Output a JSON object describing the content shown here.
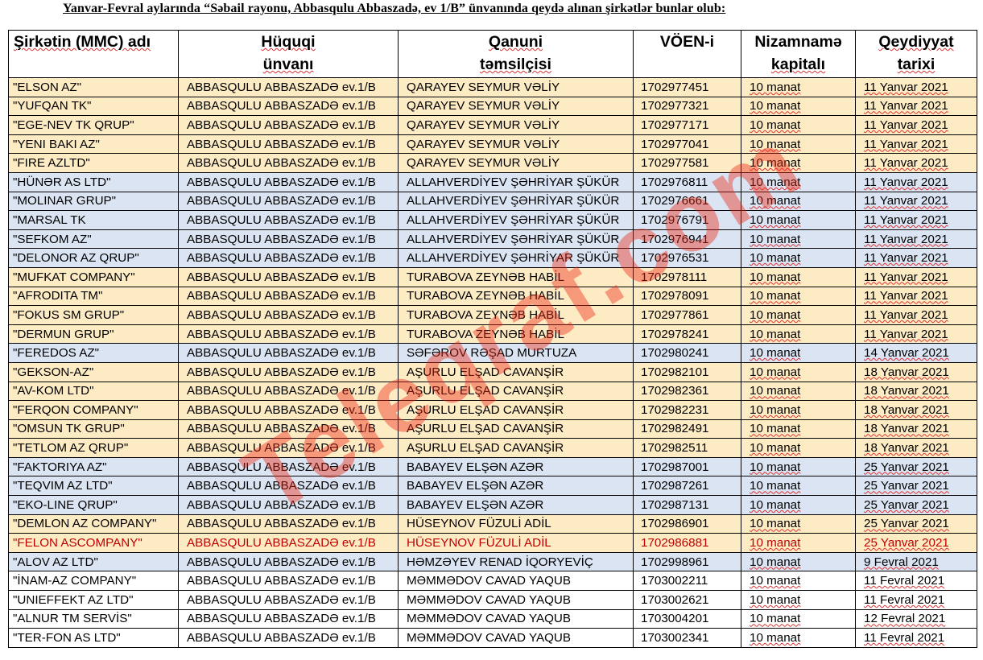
{
  "title": "Yanvar-Fevral aylarında  “Səbail rayonu, Abbasqulu Abbaszadə, ev 1/B” ünvanında qeydə alınan şirkətlər bunlar olub:",
  "watermark": "Teleqraf.com",
  "colors": {
    "orange_band": "#fdebc4",
    "blue_band": "#dbe4f3",
    "highlight_red": "#c00000"
  },
  "columns": [
    {
      "line1": "Şirkətin (MMC) adı",
      "line2": ""
    },
    {
      "line1": "Hüquqi",
      "line2": "ünvanı"
    },
    {
      "line1": "Qanuni",
      "line2": "təmsilçisi"
    },
    {
      "line1": "VÖEN-i",
      "line2": ""
    },
    {
      "line1": "Nizamnamə",
      "line2": "kapitalı"
    },
    {
      "line1": "Qeydiyyat",
      "line2": "tarixi"
    }
  ],
  "rows": [
    {
      "name": "\"ELSON AZ\"",
      "address": "ABBASQULU ABBASZADƏ ev.1/B",
      "rep": "QARAYEV SEYMUR VƏLİY",
      "voen": "1702977451",
      "capital": "10 manat",
      "date": "11 Yanvar 2021"
    },
    {
      "name": "\"YUFQAN TK\"",
      "address": "ABBASQULU ABBASZADƏ ev.1/B",
      "rep": "QARAYEV SEYMUR VƏLİY",
      "voen": "1702977321",
      "capital": "10 manat",
      "date": "11 Yanvar 2021"
    },
    {
      "name": "\"EGE-NEV TK QRUP\"",
      "address": "ABBASQULU ABBASZADƏ ev.1/B",
      "rep": "QARAYEV SEYMUR VƏLİY",
      "voen": "1702977171",
      "capital": "10 manat",
      "date": "11 Yanvar 2021"
    },
    {
      "name": "\"YENI BAKI AZ\"",
      "address": "ABBASQULU ABBASZADƏ ev.1/B",
      "rep": "QARAYEV SEYMUR VƏLİY",
      "voen": "1702977041",
      "capital": "10 manat",
      "date": "11 Yanvar 2021"
    },
    {
      "name": "\"FIRE AZLTD\"",
      "address": "ABBASQULU ABBASZADƏ ev.1/B",
      "rep": "QARAYEV SEYMUR VƏLİY",
      "voen": "1702977581",
      "capital": "10 manat",
      "date": "11 Yanvar 2021"
    },
    {
      "name": "\"HÜNƏR AS LTD\"",
      "address": "ABBASQULU ABBASZADƏ ev.1/B",
      "rep": "ALLAHVERDİYEV ŞƏHRİYAR ŞÜKÜR",
      "voen": "1702976811",
      "capital": "10 manat",
      "date": "11 Yanvar 2021"
    },
    {
      "name": "\"MOLINAR GRUP\"",
      "address": "ABBASQULU ABBASZADƏ ev.1/B",
      "rep": "ALLAHVERDİYEV ŞƏHRİYAR ŞÜKÜR",
      "voen": "1702976661",
      "capital": "10 manat",
      "date": "11 Yanvar 2021"
    },
    {
      "name": "\"MARSAL TK",
      "address": "ABBASQULU ABBASZADƏ ev.1/B",
      "rep": "ALLAHVERDİYEV ŞƏHRİYAR ŞÜKÜR",
      "voen": "1702976791",
      "capital": "10 manat",
      "date": "11 Yanvar 2021"
    },
    {
      "name": "\"SEFKOM AZ\"",
      "address": "ABBASQULU ABBASZADƏ ev.1/B",
      "rep": "ALLAHVERDİYEV ŞƏHRİYAR ŞÜKÜR",
      "voen": "1702976941",
      "capital": "10 manat",
      "date": "11 Yanvar 2021"
    },
    {
      "name": "\"DELONOR AZ QRUP\"",
      "address": "ABBASQULU ABBASZADƏ ev.1/B",
      "rep": "ALLAHVERDİYEV ŞƏHRİYAR ŞÜKÜR",
      "voen": "1702976531",
      "capital": "10 manat",
      "date": "11 Yanvar 2021"
    },
    {
      "name": "\"MUFKAT COMPANY\"",
      "address": "ABBASQULU ABBASZADƏ ev.1/B",
      "rep": "TURABOVA ZEYNƏB HABİL",
      "voen": "1702978111",
      "capital": "10 manat",
      "date": "11 Yanvar 2021"
    },
    {
      "name": "\"AFRODITA TM\"",
      "address": "ABBASQULU ABBASZADƏ ev.1/B",
      "rep": "TURABOVA ZEYNƏB HABİL",
      "voen": "1702978091",
      "capital": "10 manat",
      "date": "11 Yanvar 2021"
    },
    {
      "name": "\"FOKUS SM GRUP\"",
      "address": "ABBASQULU ABBASZADƏ ev.1/B",
      "rep": "TURABOVA ZEYNƏB HABİL",
      "voen": "1702977861",
      "capital": "10 manat",
      "date": "11 Yanvar 2021"
    },
    {
      "name": "\"DERMUN GRUP\"",
      "address": "ABBASQULU ABBASZADƏ ev.1/B",
      "rep": "TURABOVA ZEYNƏB HABİL",
      "voen": "1702978241",
      "capital": "10 manat",
      "date": "11 Yanvar 2021"
    },
    {
      "name": "\"FEREDOS AZ\"",
      "address": "ABBASQULU ABBASZADƏ ev.1/B",
      "rep": "SƏFƏROV RƏŞAD MURTUZA",
      "voen": "1702980241",
      "capital": "10 manat",
      "date": "14 Yanvar 2021"
    },
    {
      "name": "\"GEKSON-AZ\"",
      "address": "ABBASQULU ABBASZADƏ ev.1/B",
      "rep": "AŞURLU ELŞAD CAVANŞİR",
      "voen": "1702982101",
      "capital": "10 manat",
      "date": "18 Yanvar 2021"
    },
    {
      "name": "\"AV-KOM LTD\"",
      "address": "ABBASQULU ABBASZADƏ ev.1/B",
      "rep": "AŞURLU ELŞAD CAVANŞİR",
      "voen": "1702982361",
      "capital": "10 manat",
      "date": "18 Yanvar 2021"
    },
    {
      "name": "\"FERQON COMPANY\"",
      "address": "ABBASQULU ABBASZADƏ ev.1/B",
      "rep": "AŞURLU ELŞAD CAVANŞİR",
      "voen": "1702982231",
      "capital": "10 manat",
      "date": "18 Yanvar 2021"
    },
    {
      "name": "\"OMSUN TK GRUP\"",
      "address": "ABBASQULU ABBASZADƏ ev.1/B",
      "rep": "AŞURLU ELŞAD CAVANŞİR",
      "voen": "1702982491",
      "capital": "10 manat",
      "date": "18 Yanvar 2021"
    },
    {
      "name": "\"TETLOM AZ QRUP\"",
      "address": "ABBASQULU ABBASZADƏ ev.1/B",
      "rep": "AŞURLU ELŞAD CAVANŞİR",
      "voen": "1702982511",
      "capital": "10 manat",
      "date": "18 Yanvar 2021"
    },
    {
      "name": "\"FAKTORIYA AZ\"",
      "address": "ABBASQULU ABBASZADƏ ev.1/B",
      "rep": "BABAYEV ELŞƏN AZƏR",
      "voen": "1702987001",
      "capital": "10 manat",
      "date": "25 Yanvar 2021"
    },
    {
      "name": "\"TEQVIM AZ LTD\"",
      "address": "ABBASQULU ABBASZADƏ ev.1/B",
      "rep": "BABAYEV ELŞƏN AZƏR",
      "voen": "1702987261",
      "capital": "10 manat",
      "date": "25 Yanvar 2021"
    },
    {
      "name": "\"EKO-LINE QRUP\"",
      "address": "ABBASQULU ABBASZADƏ ev.1/B",
      "rep": "BABAYEV ELŞƏN AZƏR",
      "voen": "1702987131",
      "capital": "10 manat",
      "date": "25 Yanvar 2021"
    },
    {
      "name": "\"DEMLON AZ COMPANY\"",
      "address": "ABBASQULU ABBASZADƏ ev.1/B",
      "rep": "HÜSEYNOV FÜZULİ ADİL",
      "voen": "1702986901",
      "capital": "10 manat",
      "date": "25 Yanvar 2021"
    },
    {
      "name": "\"FELON ASCOMPANY\"",
      "address": "ABBASQULU ABBASZADƏ ev.1/B",
      "rep": "HÜSEYNOV FÜZULİ ADİL",
      "voen": "1702986881",
      "capital": "10 manat",
      "date": "25 Yanvar 2021"
    },
    {
      "name": "\"ALOV AZ LTD\"",
      "address": "ABBASQULU ABBASZADƏ ev.1/B",
      "rep": "HƏMZƏYEV RENAD İQORYEVİÇ",
      "voen": "1702998961",
      "capital": "10 manat",
      "date": "9 Fevral 2021"
    },
    {
      "name": "\"İNAM-AZ COMPANY\"",
      "address": "ABBASQULU ABBASZADƏ ev.1/B",
      "rep": "MƏMMƏDOV CAVAD YAQUB",
      "voen": "1703002211",
      "capital": "10 manat",
      "date": "11 Fevral 2021"
    },
    {
      "name": "\"UNIEFFEKT AZ LTD\"",
      "address": "ABBASQULU ABBASZADƏ ev.1/B",
      "rep": "MƏMMƏDOV CAVAD YAQUB",
      "voen": "1703002621",
      "capital": "10 manat",
      "date": "11 Fevral 2021"
    },
    {
      "name": "\"ALNUR TM SERVİS\"",
      "address": "ABBASQULU ABBASZADƏ ev.1/B",
      "rep": "MƏMMƏDOV CAVAD YAQUB",
      "voen": "1703004201",
      "capital": "10 manat",
      "date": "12 Fevral 2021"
    },
    {
      "name": "\"TER-FON AS LTD\"",
      "address": "ABBASQULU ABBASZADƏ ev.1/B",
      "rep": "MƏMMƏDOV CAVAD YAQUB",
      "voen": "1703002341",
      "capital": "10 manat",
      "date": "11 Fevral 2021"
    }
  ]
}
